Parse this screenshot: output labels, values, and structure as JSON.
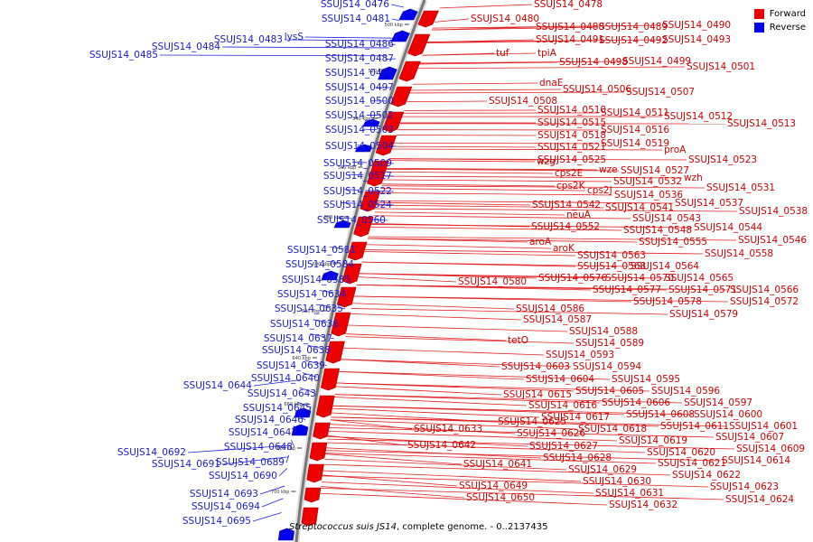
{
  "legend": {
    "forward": {
      "label": "Forward",
      "color": "#ee0000"
    },
    "reverse": {
      "label": "Reverse",
      "color": "#0000ee"
    }
  },
  "caption": {
    "organism": "Streptococcus suis JS14",
    "rest": ", complete genome. - 0..2137435"
  },
  "ticks": [
    "500 kbp",
    "520 kbp",
    "540 kbp",
    "560 kbp",
    "580 kbp",
    "600 kbp",
    "620 kbp",
    "640 kbp",
    "660 kbp",
    "680 kbp",
    "700 kbp"
  ],
  "forward_labels": [
    "SSUJS14_0478",
    "SSUJS14_0480",
    "SSUJS14_0488",
    "SSUJS14_0489",
    "SSUJS14_0490",
    "SSUJS14_0491",
    "SSUJS14_0492",
    "SSUJS14_0493",
    "tuf",
    "tpiA",
    "SSUJS14_0498",
    "SSUJS14_0499",
    "SSUJS14_0501",
    "dnaE",
    "SSUJS14_0506",
    "SSUJS14_0507",
    "SSUJS14_0508",
    "SSUJS14_0510",
    "SSUJS14_0511",
    "SSUJS14_0512",
    "SSUJS14_0515",
    "SSUJS14_0513",
    "SSUJS14_0516",
    "SSUJS14_0518",
    "SSUJS14_0519",
    "SSUJS14_0521",
    "proA",
    "SSUJS14_0525",
    "SSUJS14_0523",
    "wzg",
    "cps2E",
    "wze",
    "SSUJS14_0527",
    "wzh",
    "cps2K",
    "SSUJS14_0532",
    "SSUJS14_0531",
    "cps2J",
    "SSUJS14_0536",
    "SSUJS14_0537",
    "SSUJS14_0542",
    "SSUJS14_0541",
    "SSUJS14_0538",
    "neuA",
    "SSUJS14_0543",
    "SSUJS14_0552",
    "SSUJS14_0548",
    "SSUJS14_0544",
    "SSUJS14_0555",
    "SSUJS14_0546",
    "aroA",
    "aroK",
    "SSUJS14_0558",
    "SSUJS14_0563",
    "SSUJS14_0568",
    "SSUJS14_0564",
    "SSUJS14_0576",
    "SSUJS14_0570",
    "SSUJS14_0565",
    "SSUJS14_0580",
    "SSUJS14_0577",
    "SSUJS14_0571",
    "SSUJS14_0566",
    "SSUJS14_0578",
    "SSUJS14_0572",
    "SSUJS14_0579",
    "SSUJS14_0586",
    "SSUJS14_0587",
    "SSUJS14_0588",
    "tetO",
    "SSUJS14_0589",
    "SSUJS14_0593",
    "SSUJS14_0603",
    "SSUJS14_0594",
    "SSUJS14_0604",
    "SSUJS14_0595",
    "SSUJS14_0605",
    "SSUJS14_0596",
    "SSUJS14_0615",
    "SSUJS14_0616",
    "SSUJS14_0606",
    "SSUJS14_0597",
    "SSUJS14_0617",
    "SSUJS14_0608",
    "SSUJS14_0600",
    "SSUJS14_0625",
    "SSUJS14_0618",
    "SSUJS14_0611",
    "SSUJS14_0601",
    "SSUJS14_0633",
    "SSUJS14_0626",
    "SSUJS14_0619",
    "SSUJS14_0607",
    "SSUJS14_0642",
    "SSUJS14_0627",
    "SSUJS14_0620",
    "SSUJS14_0609",
    "SSUJS14_0628",
    "SSUJS14_0621",
    "SSUJS14_0614",
    "SSUJS14_0641",
    "SSUJS14_0629",
    "SSUJS14_0622",
    "SSUJS14_0630",
    "SSUJS14_0623",
    "SSUJS14_0649",
    "SSUJS14_0631",
    "SSUJS14_0624",
    "SSUJS14_0650",
    "SSUJS14_0632"
  ],
  "reverse_labels": [
    "SSUJS14_0476",
    "SSUJS14_0481",
    "lysS",
    "SSUJS14_0483",
    "SSUJS14_0484",
    "SSUJS14_0485",
    "SSUJS14_0486",
    "SSUJS14_0487",
    "SSUJS14_0496",
    "SSUJS14_0497",
    "SSUJS14_0500",
    "SSUJS14_0502",
    "SSUJS14_0503",
    "SSUJS14_0504",
    "SSUJS14_0509",
    "SSUJS14_0517",
    "SSUJS14_0522",
    "SSUJS14_0524",
    "SSUJS14_0560",
    "SSUJS14_0581",
    "SSUJS14_0584",
    "SSUJS14_0585",
    "SSUJS14_0634",
    "SSUJS14_0635",
    "SSUJS14_0636",
    "SSUJS14_0637",
    "SSUJS14_0638",
    "SSUJS14_0639",
    "SSUJS14_0640",
    "SSUJS14_0644",
    "SSUJS14_0643",
    "SSUJS14_0645",
    "SSUJS14_0646",
    "SSUJS14_0647",
    "SSUJS14_0648",
    "SSUJS14_0692",
    "SSUJS14_0689",
    "SSUJS14_0691",
    "SSUJS14_0690",
    "SSUJS14_0693",
    "SSUJS14_0694",
    "SSUJS14_0695"
  ]
}
